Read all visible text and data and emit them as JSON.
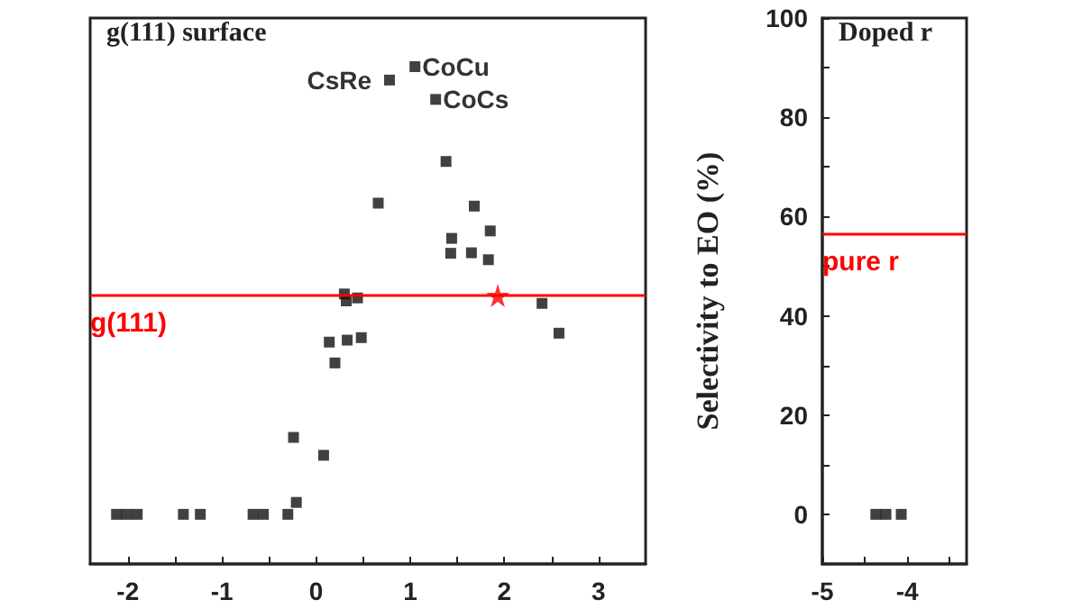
{
  "chart_data": [
    {
      "type": "scatter",
      "title": "g(111) surface",
      "series": [
        {
          "color": "#111111",
          "marker": "square",
          "x": [
            0.78,
            1.05,
            1.27,
            1.38,
            0.66,
            1.68,
            1.85,
            1.44,
            1.43,
            1.65,
            1.83,
            0.3,
            0.32,
            0.44,
            2.4,
            2.58,
            0.14,
            0.33,
            0.48,
            0.2,
            -0.24,
            0.08,
            -0.21,
            -0.3,
            -2.12,
            -2.01,
            -1.9,
            -1.41,
            -1.23,
            -0.67,
            -0.56
          ],
          "values": [
            87.5,
            90.2,
            83.6,
            71.1,
            62.7,
            62.1,
            57.1,
            55.6,
            52.6,
            52.7,
            51.3,
            44.4,
            43,
            43.6,
            42.5,
            36.5,
            34.7,
            35.1,
            35.6,
            30.5,
            15.5,
            11.9,
            2.4,
            0,
            0,
            0,
            0,
            0,
            0,
            0,
            0
          ]
        },
        {
          "color": "#ff0000",
          "marker": "star",
          "x": [
            1.93
          ],
          "values": [
            44.1
          ]
        }
      ],
      "ref_lines": [
        {
          "axis": "y",
          "value": 44.1,
          "label": "g(111)",
          "color": "#ff0000"
        }
      ],
      "annotations": [
        {
          "text": "CsRe",
          "x": 0.78,
          "y": 87.5
        },
        {
          "text": "CoCu",
          "x": 1.05,
          "y": 90.2
        },
        {
          "text": "CoCs",
          "x": 1.27,
          "y": 83.6
        }
      ],
      "xlim": [
        -2.4,
        3.5
      ],
      "xticks": [
        -2,
        {
          "value": -1.5,
          "label": null
        },
        -1,
        {
          "value": -0.5,
          "label": null
        },
        0,
        {
          "value": 0.5,
          "label": null
        },
        1,
        {
          "value": 1.5,
          "label": null
        },
        2,
        {
          "value": 2.5,
          "label": null
        },
        3
      ],
      "ylim": [
        -10,
        100
      ],
      "tick_labels": "x",
      "grid": false
    },
    {
      "type": "scatter",
      "title": "Doped r",
      "ylabel": "Selectivity to EO (%)",
      "series": [
        {
          "color": "#111111",
          "marker": "square",
          "x": [
            -4.37,
            -4.25,
            -4.07
          ],
          "values": [
            0,
            0,
            0
          ]
        }
      ],
      "ref_lines": [
        {
          "axis": "y",
          "value": 56.4,
          "label": "pure r",
          "color": "#ff0000"
        }
      ],
      "xlim": [
        -5,
        -3.3
      ],
      "xticks": [
        -5,
        {
          "value": -4.5,
          "label": null
        },
        -4,
        {
          "value": -3.5,
          "label": null
        }
      ],
      "ylim": [
        -10,
        100
      ],
      "yticks": [
        0,
        {
          "value": 10,
          "label": null
        },
        20,
        {
          "value": 30,
          "label": null
        },
        40,
        {
          "value": 50,
          "label": null
        },
        60,
        {
          "value": 70,
          "label": null
        },
        80,
        {
          "value": 90,
          "label": null
        },
        100
      ],
      "grid": false
    }
  ]
}
